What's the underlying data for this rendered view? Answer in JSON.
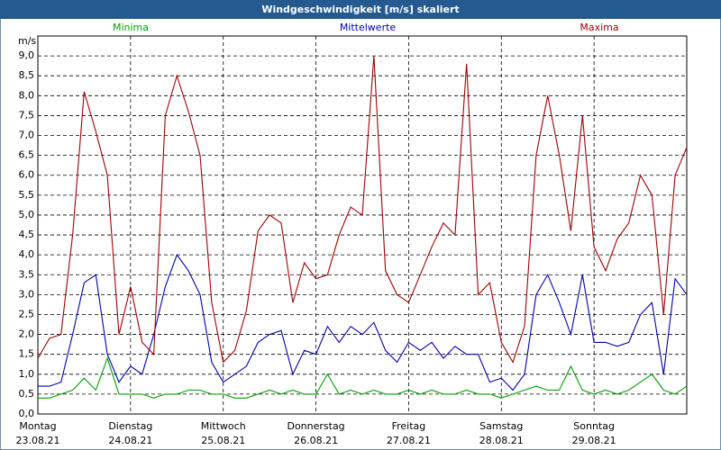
{
  "chart_data": {
    "type": "line",
    "title": "Windgeschwindigkeit [m/s] skaliert",
    "y_label": "m/s",
    "legend": "top",
    "grid": true,
    "x": [
      0,
      0.125,
      0.25,
      0.375,
      0.5,
      0.625,
      0.75,
      0.875,
      1,
      1.125,
      1.25,
      1.375,
      1.5,
      1.625,
      1.75,
      1.875,
      2,
      2.125,
      2.25,
      2.375,
      2.5,
      2.625,
      2.75,
      2.875,
      3,
      3.125,
      3.25,
      3.375,
      3.5,
      3.625,
      3.75,
      3.875,
      4,
      4.125,
      4.25,
      4.375,
      4.5,
      4.625,
      4.75,
      4.875,
      5,
      5.125,
      5.25,
      5.375,
      5.5,
      5.625,
      5.75,
      5.875,
      6,
      6.125,
      6.25,
      6.375,
      6.5,
      6.625,
      6.75,
      6.875,
      7
    ],
    "xlim": [
      0,
      7
    ],
    "xticks": [
      {
        "value": 0,
        "label": "Montag"
      },
      {
        "value": 1,
        "label": "Dienstag"
      },
      {
        "value": 2,
        "label": "Mittwoch"
      },
      {
        "value": 3,
        "label": "Donnerstag"
      },
      {
        "value": 4,
        "label": "Freitag"
      },
      {
        "value": 5,
        "label": "Samstag"
      },
      {
        "value": 6,
        "label": "Sonntag"
      }
    ],
    "xtick_dates": [
      "23.08.21",
      "24.08.21",
      "25.08.21",
      "26.08.21",
      "27.08.21",
      "28.08.21",
      "29.08.21"
    ],
    "ylim": [
      0,
      9.5
    ],
    "yticks": [
      {
        "value": 0,
        "label": "0,0"
      },
      {
        "value": 0.5,
        "label": "0,5"
      },
      {
        "value": 1,
        "label": "1,0"
      },
      {
        "value": 1.5,
        "label": "1,5"
      },
      {
        "value": 2,
        "label": "2,0"
      },
      {
        "value": 2.5,
        "label": "2,5"
      },
      {
        "value": 3,
        "label": "3,0"
      },
      {
        "value": 3.5,
        "label": "3,5"
      },
      {
        "value": 4,
        "label": "4,0"
      },
      {
        "value": 4.5,
        "label": "4,5"
      },
      {
        "value": 5,
        "label": "5,0"
      },
      {
        "value": 5.5,
        "label": "5,5"
      },
      {
        "value": 6,
        "label": "6,0"
      },
      {
        "value": 6.5,
        "label": "6,5"
      },
      {
        "value": 7,
        "label": "7,0"
      },
      {
        "value": 7.5,
        "label": "7,5"
      },
      {
        "value": 8,
        "label": "8,0"
      },
      {
        "value": 8.5,
        "label": "8,5"
      },
      {
        "value": 9,
        "label": "9,0"
      }
    ],
    "series": [
      {
        "name": "Minima",
        "color": "#00a000",
        "values": [
          0.4,
          0.4,
          0.5,
          0.6,
          0.9,
          0.6,
          1.4,
          0.5,
          0.5,
          0.5,
          0.4,
          0.5,
          0.5,
          0.6,
          0.6,
          0.5,
          0.5,
          0.4,
          0.4,
          0.5,
          0.6,
          0.5,
          0.6,
          0.5,
          0.5,
          1.0,
          0.5,
          0.6,
          0.5,
          0.6,
          0.5,
          0.5,
          0.6,
          0.5,
          0.6,
          0.5,
          0.5,
          0.6,
          0.5,
          0.5,
          0.4,
          0.5,
          0.6,
          0.7,
          0.6,
          0.6,
          1.2,
          0.6,
          0.5,
          0.6,
          0.5,
          0.6,
          0.8,
          1.0,
          0.6,
          0.5,
          0.7
        ]
      },
      {
        "name": "Mittelwerte",
        "color": "#0000b0",
        "values": [
          0.7,
          0.7,
          0.8,
          2.0,
          3.3,
          3.5,
          1.5,
          0.8,
          1.2,
          1.0,
          2.0,
          3.2,
          4.0,
          3.6,
          3.0,
          1.3,
          0.8,
          1.0,
          1.2,
          1.8,
          2.0,
          2.1,
          1.0,
          1.6,
          1.5,
          2.2,
          1.8,
          2.2,
          2.0,
          2.3,
          1.6,
          1.3,
          1.8,
          1.6,
          1.8,
          1.4,
          1.7,
          1.5,
          1.5,
          0.8,
          0.9,
          0.6,
          1.0,
          3.0,
          3.5,
          2.8,
          2.0,
          3.5,
          1.8,
          1.8,
          1.7,
          1.8,
          2.5,
          2.8,
          1.0,
          3.4,
          3.0
        ]
      },
      {
        "name": "Maxima",
        "color": "#a00000",
        "values": [
          1.4,
          1.9,
          2.0,
          4.5,
          8.1,
          7.1,
          6.0,
          2.0,
          3.2,
          1.8,
          1.5,
          7.5,
          8.5,
          7.6,
          6.5,
          2.8,
          1.3,
          1.6,
          2.6,
          4.6,
          5.0,
          4.8,
          2.8,
          3.8,
          3.4,
          3.5,
          4.5,
          5.2,
          5.0,
          9.0,
          3.6,
          3.0,
          2.8,
          3.5,
          4.2,
          4.8,
          4.5,
          8.8,
          3.0,
          3.3,
          1.8,
          1.3,
          2.2,
          6.5,
          8.0,
          6.5,
          4.6,
          7.5,
          4.2,
          3.6,
          4.4,
          4.8,
          6.0,
          5.5,
          2.5,
          6.0,
          6.7
        ]
      }
    ]
  }
}
